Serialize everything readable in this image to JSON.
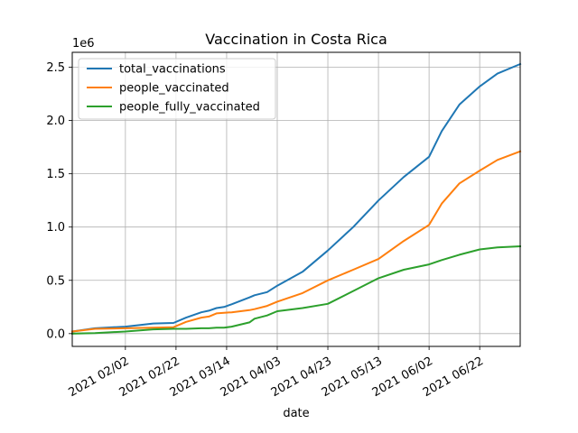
{
  "chart_data": {
    "type": "line",
    "title": "Vaccination in Costa Rica",
    "xlabel": "date",
    "ylabel": "",
    "y_scale_label": "1e6",
    "grid": true,
    "legend_position": "top-left",
    "xlim": [
      "2021-01-12",
      "2021-07-08"
    ],
    "ylim": [
      -120000,
      2640000
    ],
    "x_ticks": [
      "2021-02-02",
      "2021-02-22",
      "2021-03-14",
      "2021-04-03",
      "2021-04-23",
      "2021-05-13",
      "2021-06-02",
      "2021-06-22"
    ],
    "x_tick_labels": [
      "2021 02/02",
      "2021 02/22",
      "2021 03/14",
      "2021 04/03",
      "2021 04/23",
      "2021 05/13",
      "2021 06/02",
      "2021 06/22"
    ],
    "y_ticks": [
      0,
      500000,
      1000000,
      1500000,
      2000000,
      2500000
    ],
    "y_tick_labels": [
      "0.0",
      "0.5",
      "1.0",
      "1.5",
      "2.0",
      "2.5"
    ],
    "x": [
      "2021-01-12",
      "2021-01-21",
      "2021-02-02",
      "2021-02-13",
      "2021-02-21",
      "2021-02-26",
      "2021-03-04",
      "2021-03-07",
      "2021-03-10",
      "2021-03-13",
      "2021-03-16",
      "2021-03-23",
      "2021-03-25",
      "2021-03-30",
      "2021-04-03",
      "2021-04-13",
      "2021-04-23",
      "2021-05-03",
      "2021-05-13",
      "2021-05-23",
      "2021-06-02",
      "2021-06-07",
      "2021-06-14",
      "2021-06-22",
      "2021-06-29",
      "2021-07-08"
    ],
    "series": [
      {
        "name": "total_vaccinations",
        "color": "#1f77b4",
        "values": [
          20000,
          50000,
          65000,
          95000,
          100000,
          150000,
          200000,
          215000,
          240000,
          250000,
          275000,
          340000,
          360000,
          390000,
          450000,
          580000,
          780000,
          1000000,
          1250000,
          1470000,
          1660000,
          1900000,
          2150000,
          2320000,
          2440000,
          2530000
        ]
      },
      {
        "name": "people_vaccinated",
        "color": "#ff7f0e",
        "values": [
          20000,
          45000,
          50000,
          55000,
          60000,
          110000,
          150000,
          160000,
          190000,
          195000,
          200000,
          220000,
          230000,
          260000,
          300000,
          380000,
          500000,
          600000,
          700000,
          870000,
          1020000,
          1220000,
          1410000,
          1530000,
          1630000,
          1710000
        ]
      },
      {
        "name": "people_fully_vaccinated",
        "color": "#2ca02c",
        "values": [
          0,
          5000,
          20000,
          40000,
          45000,
          45000,
          50000,
          50000,
          55000,
          55000,
          65000,
          105000,
          140000,
          170000,
          210000,
          240000,
          280000,
          400000,
          520000,
          600000,
          650000,
          690000,
          740000,
          790000,
          810000,
          820000
        ]
      }
    ]
  }
}
